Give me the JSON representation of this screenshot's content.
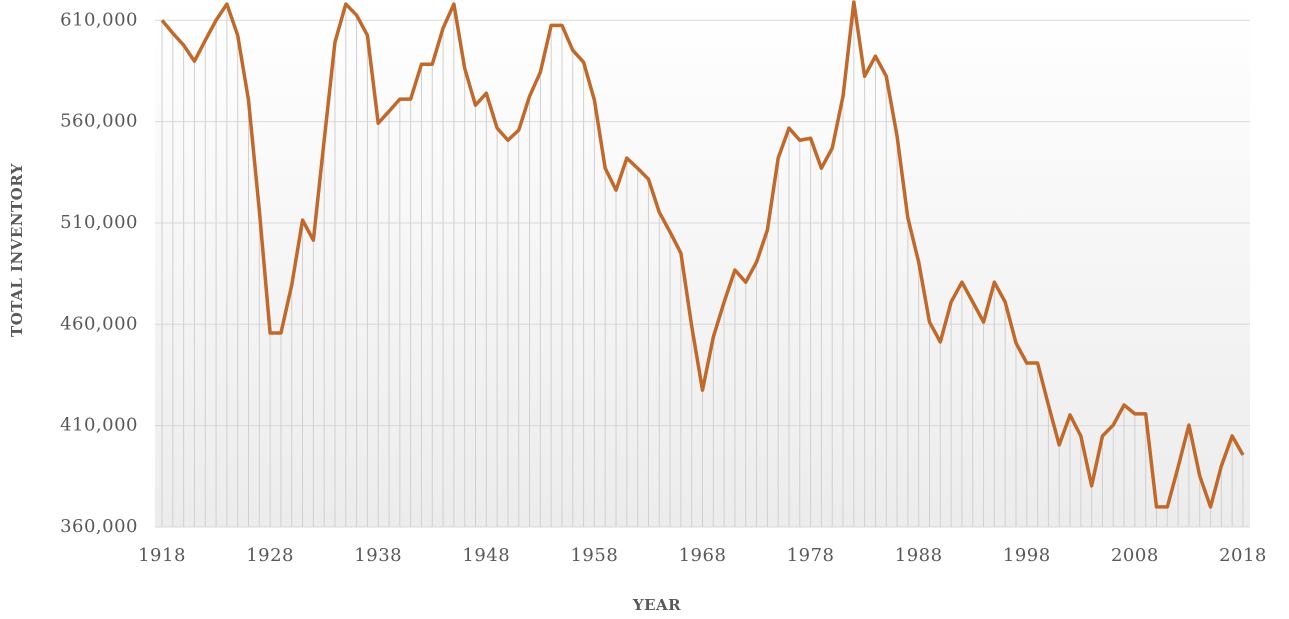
{
  "chart_data": {
    "type": "line",
    "x_label": "YEAR",
    "y_label": "TOTAL INVENTORY",
    "x": [
      1918,
      1919,
      1920,
      1921,
      1922,
      1923,
      1924,
      1925,
      1926,
      1927,
      1928,
      1929,
      1930,
      1931,
      1932,
      1933,
      1934,
      1935,
      1936,
      1937,
      1938,
      1939,
      1940,
      1941,
      1942,
      1943,
      1944,
      1945,
      1946,
      1947,
      1948,
      1949,
      1950,
      1951,
      1952,
      1953,
      1954,
      1955,
      1956,
      1957,
      1958,
      1959,
      1960,
      1961,
      1962,
      1963,
      1964,
      1965,
      1966,
      1967,
      1968,
      1969,
      1970,
      1971,
      1972,
      1973,
      1974,
      1975,
      1976,
      1977,
      1978,
      1979,
      1980,
      1981,
      1982,
      1983,
      1984,
      1985,
      1986,
      1987,
      1988,
      1989,
      1990,
      1991,
      1992,
      1993,
      1994,
      1995,
      1996,
      1997,
      1998,
      1999,
      2000,
      2001,
      2002,
      2003,
      2004,
      2005,
      2006,
      2007,
      2008,
      2009,
      2010,
      2011,
      2012,
      2013,
      2014,
      2015,
      2016,
      2017,
      2018
    ],
    "series": [
      {
        "color": "#c0692a",
        "values": [
          610000,
          603600,
          597700,
          589800,
          600100,
          610000,
          618000,
          602600,
          570600,
          516300,
          455700,
          455700,
          479400,
          511400,
          501500,
          550800,
          599200,
          618000,
          612500,
          602600,
          559200,
          565100,
          571100,
          571100,
          588300,
          588300,
          606100,
          618000,
          586300,
          568100,
          574000,
          556800,
          550800,
          555800,
          572500,
          584400,
          607500,
          607500,
          595200,
          589300,
          570600,
          537000,
          526200,
          542000,
          537000,
          531600,
          515300,
          505500,
          495100,
          459100,
          427500,
          453700,
          471000,
          486800,
          480800,
          490700,
          506500,
          542000,
          556800,
          550800,
          551800,
          537000,
          546900,
          572500,
          619000,
          582400,
          592300,
          582400,
          552800,
          512400,
          490700,
          461100,
          451300,
          471000,
          480800,
          471000,
          461100,
          480800,
          471000,
          450800,
          440900,
          440900,
          420200,
          400500,
          415300,
          404900,
          380300,
          404900,
          410300,
          420200,
          415800,
          415800,
          369900,
          369900,
          389600,
          410300,
          385200,
          369900,
          390100,
          404900,
          395500
        ]
      }
    ],
    "xlim": [
      1917.35,
      2018.65
    ],
    "xticks": [
      1918,
      1928,
      1938,
      1948,
      1958,
      1968,
      1978,
      1988,
      1998,
      2008,
      2018
    ],
    "ylim": [
      360000,
      620000
    ],
    "yticks": [
      {
        "value": 360000,
        "label": "360,000"
      },
      {
        "value": 410000,
        "label": "410,000"
      },
      {
        "value": 460000,
        "label": "460,000"
      },
      {
        "value": 510000,
        "label": "510,000"
      },
      {
        "value": 560000,
        "label": "560,000"
      },
      {
        "value": 610000,
        "label": "610,000"
      }
    ],
    "grid": true,
    "drop_lines": true
  }
}
